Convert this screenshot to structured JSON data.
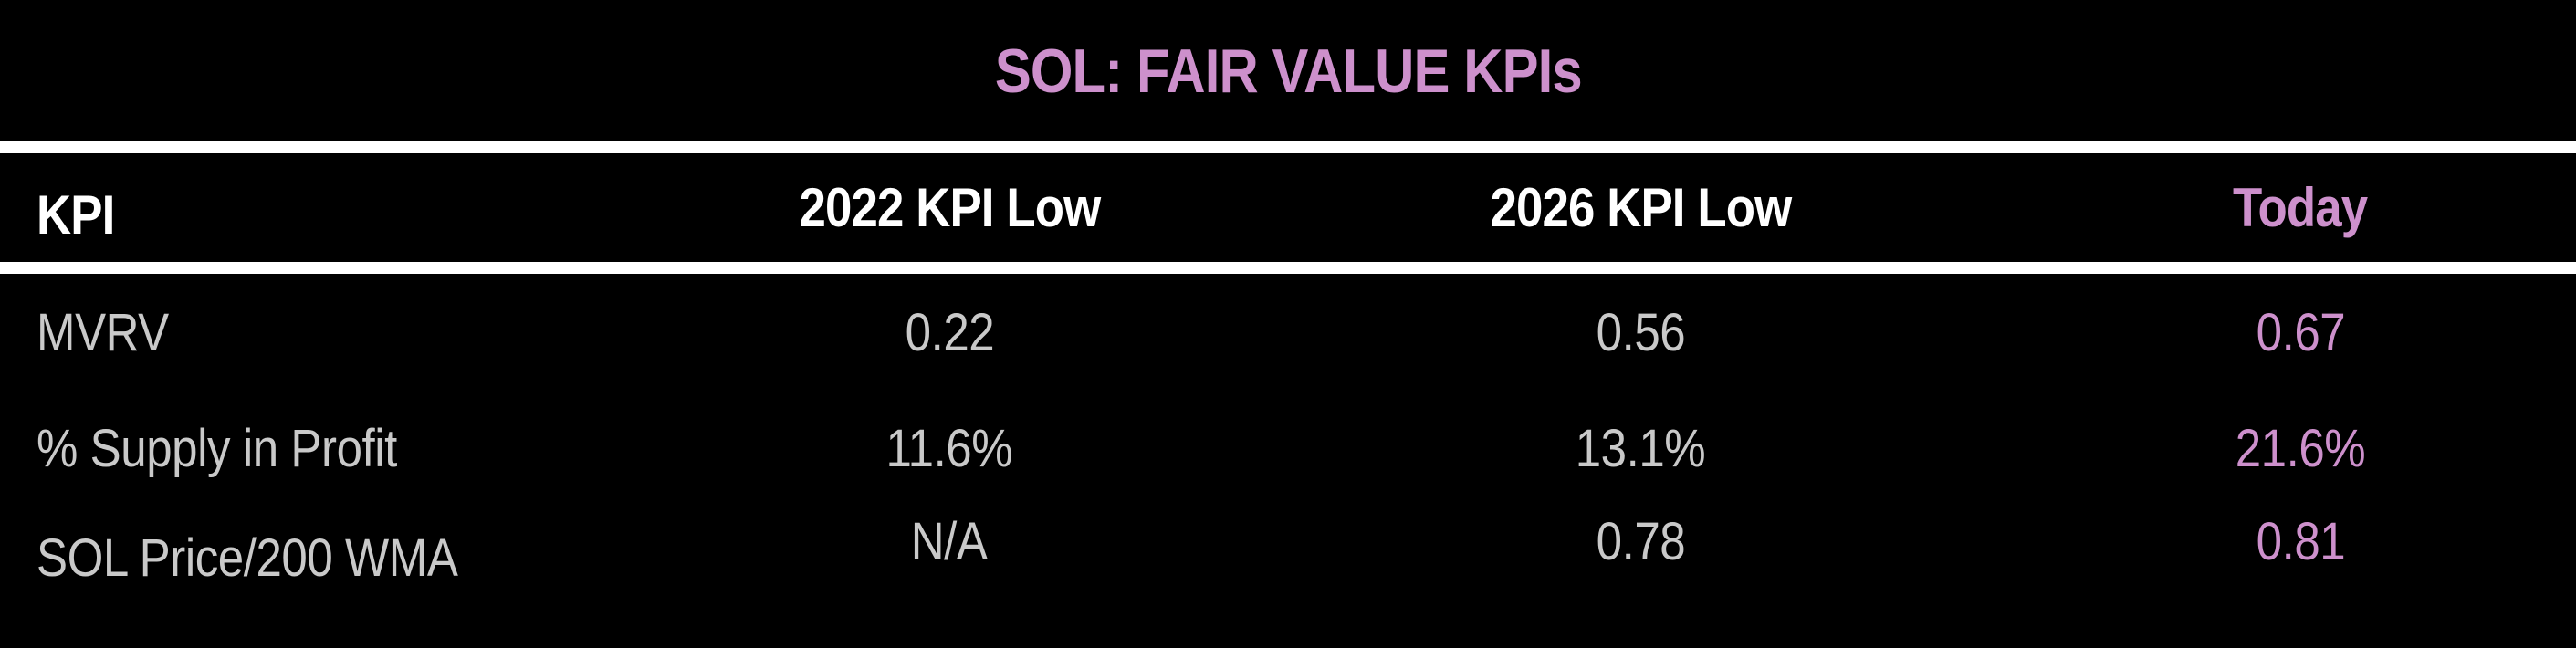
{
  "chart_data": {
    "type": "table",
    "title": "SOL: FAIR VALUE KPIs",
    "columns": [
      "KPI",
      "2022 KPI Low",
      "2026 KPI Low",
      "Today"
    ],
    "rows": [
      [
        "MVRV",
        "0.22",
        "0.56",
        "0.67"
      ],
      [
        "% Supply in Profit",
        "11.6%",
        "13.1%",
        "21.6%"
      ],
      [
        "SOL Price/200 WMA",
        "N/A",
        "0.78",
        "0.81"
      ]
    ],
    "layout": {
      "legend": "none",
      "grid": "off",
      "header_dividers": "full-width white rules above and below header row",
      "highlight_column": "Today"
    }
  },
  "colors": {
    "background": "#000000",
    "title_pink": "#cd90cc",
    "today_pink": "#cd90cc",
    "header_white": "#ffffff",
    "value_gray": "#c9c9c9",
    "divider_white": "#ffffff"
  }
}
